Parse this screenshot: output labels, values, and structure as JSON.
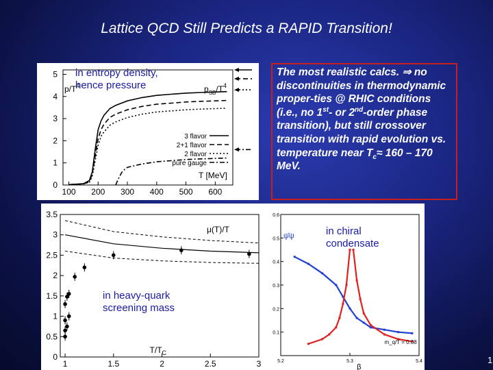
{
  "slide": {
    "title": "Lattice QCD Still Predicts a RAPID Transition!",
    "text_parts": [
      "The most realistic calcs. ",
      "⇒",
      " no discontinuities in thermodynamic proper-ties @ RHIC conditions (i.e., no 1",
      "st",
      "- or 2",
      "nd",
      "-order phase transition), but still crossover transition with rapid evolution vs. temperature near T",
      "c",
      "≈",
      " 160 – 170 MeV."
    ],
    "page_marker": "1"
  },
  "notes": {
    "entropy": [
      "in entropy density,",
      "hence pressure"
    ],
    "screening": [
      "in heavy-quark",
      "screening mass"
    ],
    "chiral": [
      "in chiral",
      "condensate"
    ]
  },
  "colors": {
    "accent_border": "#c81e1e",
    "chiral_red": "#e02020",
    "chiral_blue": "#1f3fd0",
    "note_blue": "#1a1aa8"
  },
  "chart_data": [
    {
      "type": "line",
      "xlabel": "T [MeV]",
      "ylabel_parts": [
        "p/T",
        "4"
      ],
      "xlim": [
        80,
        660
      ],
      "ylim": [
        0,
        5.2
      ],
      "xticks": [
        100,
        200,
        300,
        400,
        500,
        600
      ],
      "yticks": [
        0,
        1,
        2,
        3,
        4,
        5
      ],
      "sb_label_parts": [
        "p",
        "SB",
        "/T",
        "4"
      ],
      "legend_placement": "right",
      "series": [
        {
          "name": "3 flavor",
          "dash": "solid",
          "sb_limit": 5.2,
          "x": [
            100,
            150,
            170,
            180,
            190,
            200,
            210,
            220,
            240,
            260,
            300,
            350,
            400,
            450,
            500,
            550,
            600,
            640
          ],
          "y": [
            0.02,
            0.06,
            0.2,
            0.6,
            1.6,
            2.5,
            2.9,
            3.15,
            3.45,
            3.6,
            3.8,
            3.95,
            4.05,
            4.1,
            4.15,
            4.18,
            4.2,
            4.22
          ]
        },
        {
          "name": "2+1 flavor",
          "dash": "dashed",
          "sb_limit": 4.8,
          "x": [
            100,
            150,
            170,
            180,
            190,
            200,
            210,
            220,
            240,
            260,
            300,
            350,
            400,
            450,
            500,
            550,
            600,
            640
          ],
          "y": [
            0.02,
            0.05,
            0.15,
            0.5,
            1.3,
            2.1,
            2.5,
            2.75,
            3.05,
            3.2,
            3.4,
            3.55,
            3.65,
            3.7,
            3.75,
            3.78,
            3.8,
            3.82
          ]
        },
        {
          "name": "2 flavor",
          "dash": "dotted",
          "sb_limit": 4.3,
          "x": [
            100,
            150,
            170,
            180,
            190,
            200,
            210,
            220,
            240,
            260,
            300,
            350,
            400,
            450,
            500,
            550,
            600,
            640
          ],
          "y": [
            0.02,
            0.05,
            0.12,
            0.4,
            1.1,
            1.8,
            2.2,
            2.4,
            2.7,
            2.85,
            3.05,
            3.2,
            3.3,
            3.35,
            3.4,
            3.43,
            3.45,
            3.47
          ]
        },
        {
          "name": "pure gauge",
          "dash": "dashdot",
          "sb_limit": 1.6,
          "x": [
            260,
            270,
            280,
            290,
            300,
            350,
            400,
            450,
            500,
            550,
            600,
            640
          ],
          "y": [
            0.0,
            0.3,
            0.55,
            0.7,
            0.8,
            0.95,
            1.05,
            1.1,
            1.15,
            1.18,
            1.2,
            1.22
          ]
        }
      ]
    },
    {
      "type": "scatter",
      "xlabel_parts": [
        "T/T",
        "C"
      ],
      "curve_label": "μ(T)/T",
      "xlim": [
        0.95,
        3.0
      ],
      "ylim": [
        0,
        3.5
      ],
      "xticks": [
        1,
        1.5,
        2,
        2.5,
        3
      ],
      "xtick_labels": [
        "1",
        "1.5",
        "2",
        "2.5",
        "3"
      ],
      "yticks": [
        0,
        0.5,
        1,
        1.5,
        2,
        2.5,
        3,
        3.5
      ],
      "ytick_labels": [
        "0",
        "0.5",
        "1",
        "1.5",
        "2",
        "2.5",
        "3",
        "3.5"
      ],
      "points": {
        "x": [
          1.0,
          1.0,
          1.02,
          1.0,
          1.04,
          1.0,
          1.02,
          1.04,
          1.1,
          1.2,
          1.5,
          2.2,
          2.9
        ],
        "y": [
          0.5,
          0.65,
          0.75,
          0.9,
          1.0,
          1.3,
          1.48,
          1.55,
          1.97,
          2.2,
          2.5,
          2.62,
          2.53
        ]
      },
      "band_upper": {
        "x": [
          1.0,
          1.5,
          2.0,
          2.5,
          3.0
        ],
        "y": [
          3.35,
          3.08,
          2.95,
          2.86,
          2.8
        ]
      },
      "band_middle": {
        "x": [
          1.0,
          1.5,
          2.0,
          2.5,
          3.0
        ],
        "y": [
          3.0,
          2.78,
          2.67,
          2.6,
          2.56
        ]
      },
      "band_lower": {
        "x": [
          1.0,
          1.5,
          2.0,
          2.5,
          3.0
        ],
        "y": [
          2.6,
          2.43,
          2.36,
          2.32,
          2.3
        ]
      }
    },
    {
      "type": "line",
      "xlabel": "β",
      "ylabel": "ψ̄ψ",
      "annotation": "m_q/T = 0.08",
      "xlim": [
        5.2,
        5.4
      ],
      "ylim": [
        0.0,
        0.6
      ],
      "xticks": [
        5.2,
        5.3,
        5.4
      ],
      "xtick_labels": [
        "5.2",
        "5.3",
        "5.4"
      ],
      "yticks": [
        0.1,
        0.2,
        0.3,
        0.4,
        0.5,
        0.6
      ],
      "ytick_labels": [
        "0.1",
        "0.2",
        "0.3",
        "0.4",
        "0.5",
        "0.6"
      ],
      "series": [
        {
          "name": "",
          "color": "blue",
          "x": [
            5.22,
            5.24,
            5.26,
            5.28,
            5.29,
            5.3,
            5.31,
            5.32,
            5.33,
            5.35,
            5.37,
            5.39
          ],
          "y": [
            0.42,
            0.39,
            0.35,
            0.3,
            0.25,
            0.2,
            0.16,
            0.14,
            0.12,
            0.11,
            0.1,
            0.095
          ]
        },
        {
          "name": "",
          "color": "red",
          "x": [
            5.24,
            5.26,
            5.27,
            5.28,
            5.285,
            5.29,
            5.295,
            5.3
          ],
          "y": [
            0.05,
            0.07,
            0.09,
            0.12,
            0.16,
            0.22,
            0.3,
            0.45
          ]
        },
        {
          "name": "",
          "color": "red",
          "x": [
            5.305,
            5.31,
            5.315,
            5.32,
            5.33,
            5.35,
            5.37,
            5.39
          ],
          "y": [
            0.45,
            0.32,
            0.24,
            0.18,
            0.13,
            0.09,
            0.07,
            0.06
          ]
        }
      ]
    }
  ]
}
